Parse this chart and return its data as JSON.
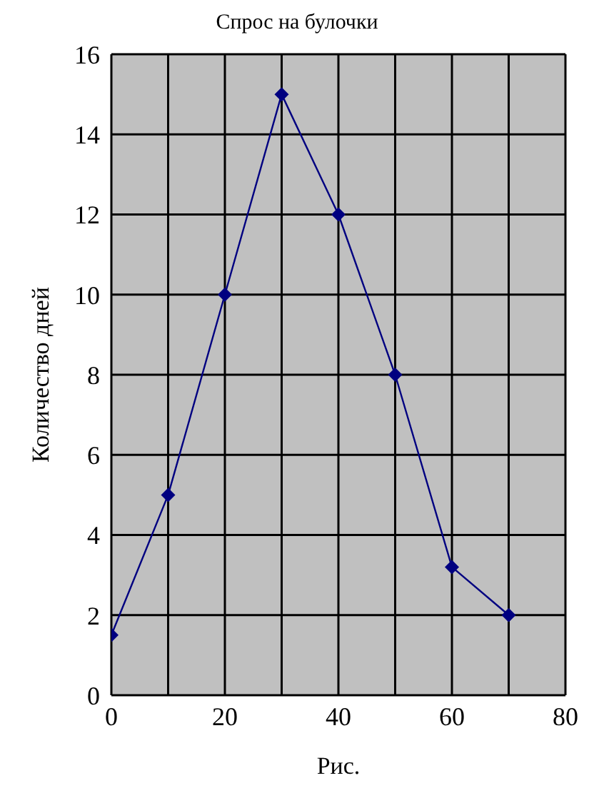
{
  "chart_data": {
    "type": "line",
    "title": "Спрос на булочки",
    "xlabel": "Рис.",
    "ylabel": "Количество дней",
    "x": [
      0,
      10,
      20,
      30,
      40,
      50,
      60,
      70
    ],
    "series": [
      {
        "color": "#000080",
        "values": [
          1.5,
          5,
          10,
          15,
          12,
          8,
          3.2,
          2
        ]
      }
    ],
    "xlim": [
      0,
      80
    ],
    "xticks": [
      0,
      {
        "value": 10,
        "label": null
      },
      20,
      {
        "value": 30,
        "label": null
      },
      40,
      {
        "value": 50,
        "label": null
      },
      60,
      {
        "value": 70,
        "label": null
      },
      80
    ],
    "ylim": [
      0,
      16
    ],
    "yticks": [
      0,
      2,
      4,
      6,
      8,
      10,
      12,
      14,
      16
    ],
    "grid": true,
    "marker": "diamond",
    "line_style": "solid",
    "legend": false
  }
}
